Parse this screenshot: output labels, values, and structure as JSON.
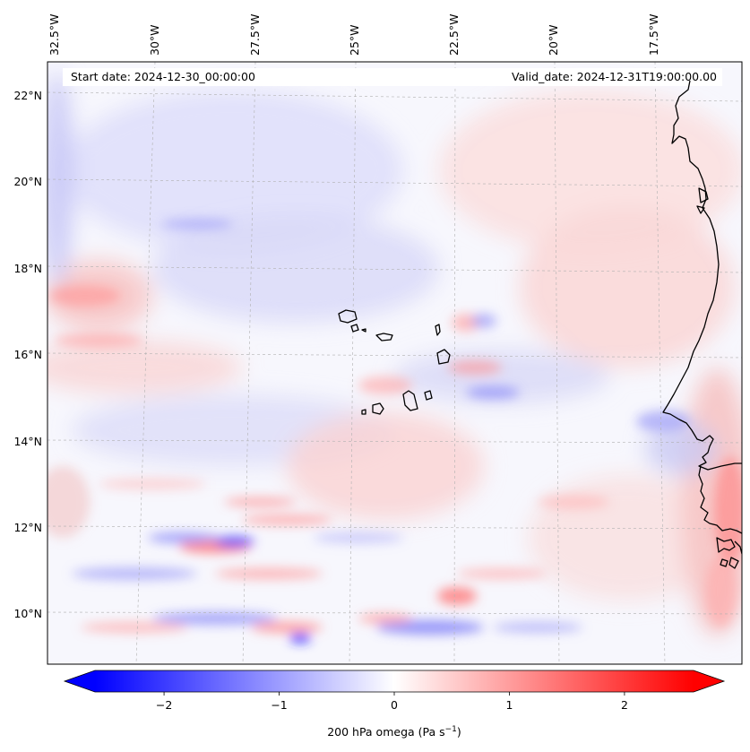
{
  "header": {
    "start_date": "Start date: 2024-12-30_00:00:00",
    "valid_date": "Valid_date: 2024-12-31T19:00:00.00"
  },
  "axes": {
    "lon_labels": [
      "32.5°W",
      "30°W",
      "27.5°W",
      "25°W",
      "22.5°W",
      "20°W",
      "17.5°W"
    ],
    "lat_labels": [
      "22°N",
      "20°N",
      "18°N",
      "16°N",
      "14°N",
      "12°N",
      "10°N"
    ]
  },
  "colorbar": {
    "label": "200 hPa omega (Pa s",
    "label_sup": "−1",
    "label_close": ")",
    "ticks": [
      "−2",
      "−1",
      "0",
      "1",
      "2"
    ],
    "tick_values": [
      -2,
      -1,
      0,
      1,
      2
    ],
    "range": [
      -2.6,
      2.6
    ],
    "colormap": "bwr",
    "extend": "both"
  },
  "colors": {
    "negative": "#0000ff",
    "neutral": "#ffffff",
    "positive": "#ff0000",
    "coastline": "#000000",
    "gridline": "#b0b0b0"
  }
}
